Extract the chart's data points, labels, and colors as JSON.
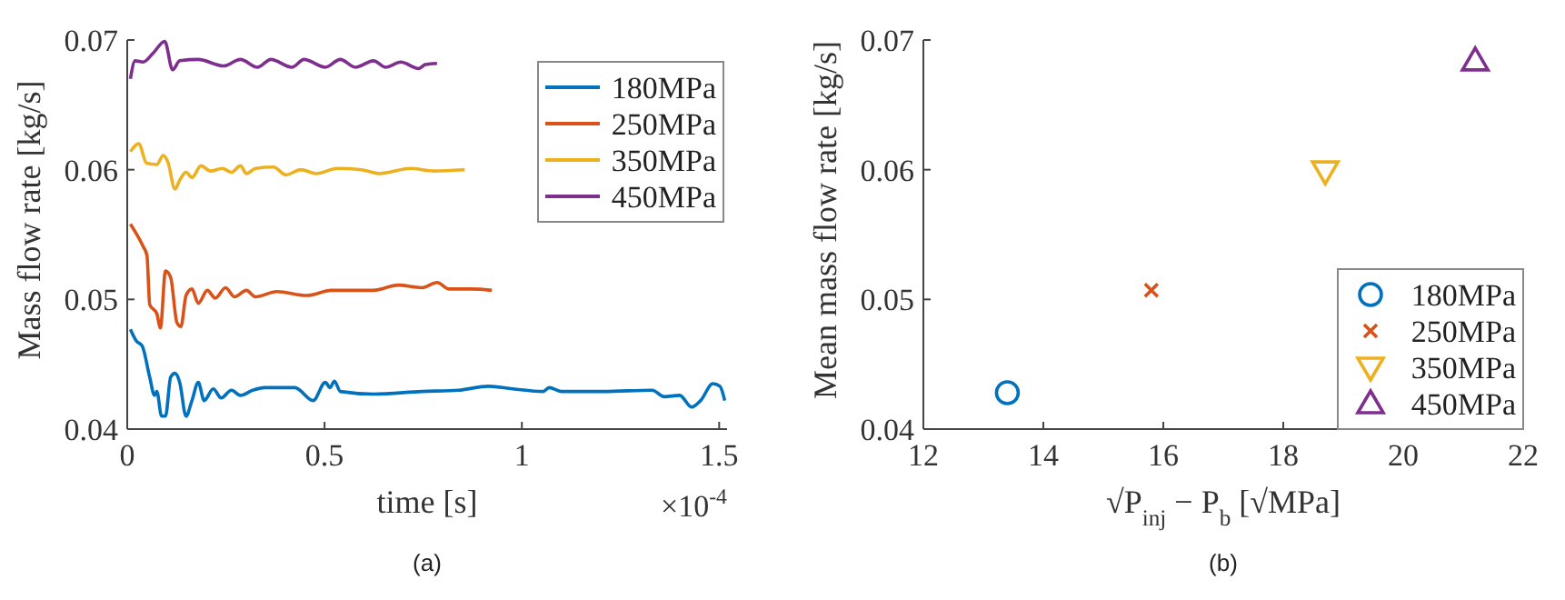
{
  "chart_data": [
    {
      "type": "line",
      "xlabel": "time [s]",
      "ylabel": "Mass flow rate [kg/s]",
      "xlim": [
        0,
        1.52
      ],
      "xticks": [
        0,
        0.5,
        1,
        1.5
      ],
      "ylim": [
        0.04,
        0.07
      ],
      "yticks": [
        0.04,
        0.05,
        0.06,
        0.07
      ],
      "legend": "top right",
      "grid": false,
      "line_style": "solid",
      "marker": "none",
      "annotations": [
        "×10$^{-4}$",
        "(a)"
      ],
      "series": [
        {
          "name": "180MPa",
          "color": "#0072bd",
          "x": [
            0.008,
            0.023,
            0.038,
            0.057,
            0.069,
            0.075,
            0.087,
            0.097,
            0.11,
            0.121,
            0.133,
            0.149,
            0.164,
            0.18,
            0.195,
            0.218,
            0.238,
            0.264,
            0.287,
            0.318,
            0.348,
            0.425,
            0.471,
            0.502,
            0.514,
            0.525,
            0.54,
            0.624,
            0.747,
            0.839,
            0.916,
            0.977,
            1.054,
            1.069,
            1.1,
            1.207,
            1.33,
            1.361,
            1.4,
            1.43,
            1.453,
            1.484,
            1.502,
            1.514
          ],
          "values": [
            0.0477,
            0.0468,
            0.0464,
            0.044,
            0.0426,
            0.0429,
            0.041,
            0.041,
            0.044,
            0.0443,
            0.0436,
            0.041,
            0.0422,
            0.0436,
            0.0422,
            0.0431,
            0.0424,
            0.043,
            0.0426,
            0.043,
            0.0432,
            0.0432,
            0.0422,
            0.0436,
            0.0432,
            0.0437,
            0.0429,
            0.0427,
            0.0429,
            0.043,
            0.0433,
            0.0431,
            0.0429,
            0.0432,
            0.0429,
            0.0429,
            0.043,
            0.0425,
            0.0426,
            0.0417,
            0.0422,
            0.0435,
            0.0433,
            0.0422
          ]
        },
        {
          "name": "250MPa",
          "color": "#d95319",
          "x": [
            0.008,
            0.04,
            0.05,
            0.057,
            0.075,
            0.084,
            0.097,
            0.11,
            0.126,
            0.136,
            0.149,
            0.164,
            0.18,
            0.203,
            0.223,
            0.249,
            0.272,
            0.302,
            0.325,
            0.379,
            0.456,
            0.517,
            0.624,
            0.686,
            0.747,
            0.785,
            0.816,
            0.87,
            0.924
          ],
          "values": [
            0.0558,
            0.0541,
            0.0534,
            0.0496,
            0.0489,
            0.0478,
            0.0522,
            0.0517,
            0.0482,
            0.0479,
            0.0503,
            0.0508,
            0.0497,
            0.0507,
            0.0501,
            0.0509,
            0.0502,
            0.0507,
            0.0502,
            0.0506,
            0.0503,
            0.0507,
            0.0507,
            0.0511,
            0.0509,
            0.0513,
            0.0508,
            0.0508,
            0.0507
          ]
        },
        {
          "name": "350MPa",
          "color": "#edb120",
          "x": [
            0.008,
            0.029,
            0.049,
            0.075,
            0.091,
            0.103,
            0.121,
            0.133,
            0.149,
            0.164,
            0.187,
            0.21,
            0.241,
            0.264,
            0.287,
            0.302,
            0.325,
            0.371,
            0.402,
            0.44,
            0.479,
            0.532,
            0.594,
            0.64,
            0.717,
            0.778,
            0.855
          ],
          "values": [
            0.0614,
            0.062,
            0.0605,
            0.0604,
            0.0611,
            0.0606,
            0.0585,
            0.0592,
            0.0598,
            0.0594,
            0.0603,
            0.0599,
            0.0601,
            0.0598,
            0.0603,
            0.0597,
            0.0601,
            0.0602,
            0.0596,
            0.06,
            0.0597,
            0.0601,
            0.06,
            0.0597,
            0.0601,
            0.0599,
            0.06
          ]
        },
        {
          "name": "450MPa",
          "color": "#7e2f8e",
          "x": [
            0.008,
            0.02,
            0.04,
            0.066,
            0.095,
            0.115,
            0.133,
            0.18,
            0.244,
            0.287,
            0.33,
            0.364,
            0.417,
            0.448,
            0.502,
            0.54,
            0.578,
            0.624,
            0.655,
            0.693,
            0.739,
            0.755,
            0.785
          ],
          "values": [
            0.067,
            0.0684,
            0.0683,
            0.069,
            0.0699,
            0.0677,
            0.0684,
            0.0685,
            0.068,
            0.0685,
            0.0679,
            0.0685,
            0.0679,
            0.0685,
            0.0679,
            0.0685,
            0.0679,
            0.0684,
            0.0679,
            0.0683,
            0.0678,
            0.0681,
            0.0682
          ]
        }
      ]
    },
    {
      "type": "scatter",
      "xlabel": "√P$_{inj}$ − P$_{b}$ [√MPa]",
      "ylabel": "Mean mass flow rate [kg/s]",
      "xlim": [
        12,
        22
      ],
      "xticks": [
        12,
        14,
        16,
        18,
        20,
        22
      ],
      "ylim": [
        0.04,
        0.07
      ],
      "yticks": [
        0.04,
        0.05,
        0.06,
        0.07
      ],
      "legend": "bottom right",
      "grid": false,
      "annotations": [
        "(b)"
      ],
      "series": [
        {
          "name": "180MPa",
          "color": "#0072bd",
          "marker": "circle",
          "x": [
            13.4
          ],
          "values": [
            0.0428
          ]
        },
        {
          "name": "250MPa",
          "color": "#d95319",
          "marker": "cross",
          "x": [
            15.8
          ],
          "values": [
            0.0507
          ]
        },
        {
          "name": "350MPa",
          "color": "#edb120",
          "marker": "triangle-down",
          "x": [
            18.7
          ],
          "values": [
            0.0599
          ]
        },
        {
          "name": "450MPa",
          "color": "#7e2f8e",
          "marker": "triangle",
          "x": [
            21.2
          ],
          "values": [
            0.0684
          ]
        }
      ]
    }
  ]
}
